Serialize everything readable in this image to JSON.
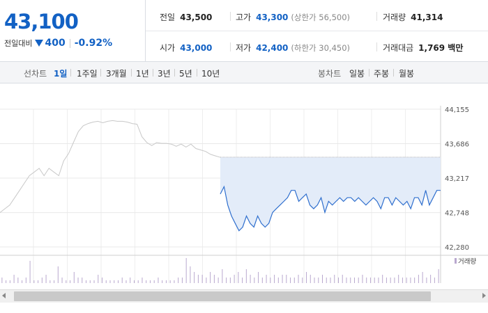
{
  "summary": {
    "price": "43,100",
    "change_label": "전일대비",
    "change_amount": "400",
    "change_pct": "-0.92%",
    "prev_close": {
      "label": "전일",
      "value": "43,500"
    },
    "high": {
      "label": "고가",
      "value": "43,300",
      "limit_label": "(상한가 56,500)"
    },
    "volume": {
      "label": "거래량",
      "value": "41,314"
    },
    "open": {
      "label": "시가",
      "value": "43,000"
    },
    "low": {
      "label": "저가",
      "value": "42,400",
      "limit_label": "(하한가 30,450)"
    },
    "trade_value": {
      "label": "거래대금",
      "value": "1,769 백만"
    }
  },
  "tabs": {
    "line_chart_label": "선차트",
    "periods": [
      "1일",
      "1주일",
      "3개월",
      "1년",
      "3년",
      "5년",
      "10년"
    ],
    "selected_period": "1일",
    "candle_label": "봉차트",
    "candle_periods": [
      "일봉",
      "주봉",
      "월봉"
    ]
  },
  "colors": {
    "price_blue": "#1261c4",
    "prev_line_gray": "#c8c8c8",
    "today_line": "#2f6fce",
    "area_fill": "#e3ecf9",
    "volume_bar": "#b9a8cf"
  },
  "chart_data": {
    "type": "line",
    "ylim": [
      42280,
      44155
    ],
    "y_ticks": [
      44155,
      43686,
      43217,
      42748,
      42280
    ],
    "y_tick_labels": [
      "44,155",
      "43,686",
      "43,217",
      "42,748",
      "42,280"
    ],
    "prev_close": 43500,
    "volume_legend": "거래량",
    "series": [
      {
        "values": [
          42748,
          42800,
          42850,
          42950,
          43050,
          43150,
          43250,
          43300,
          43350,
          43250,
          43350,
          43300,
          43250,
          43450,
          43550,
          43700,
          43850,
          43930,
          43960,
          43980,
          43990,
          43970,
          43990,
          44000,
          43990,
          43990,
          43980,
          43960,
          43950,
          43780,
          43700,
          43660,
          43700,
          43690,
          43690,
          43680,
          43650,
          43680,
          43640,
          43680,
          43620,
          43600,
          43580,
          43540,
          43520,
          43500
        ]
      },
      {
        "values": [
          43000,
          43100,
          42850,
          42700,
          42600,
          42500,
          42550,
          42700,
          42600,
          42550,
          42700,
          42600,
          42550,
          42600,
          42750,
          42800,
          42850,
          42900,
          42950,
          43050,
          43050,
          42900,
          42950,
          43000,
          42850,
          42800,
          42850,
          42950,
          42750,
          42900,
          42850,
          42900,
          42950,
          42900,
          42950,
          42950,
          42900,
          42950,
          42900,
          42850,
          42900,
          42950,
          42900,
          42800,
          42950,
          42950,
          42850,
          42950,
          42900,
          42850,
          42900,
          42800,
          42950,
          42950,
          42850,
          43050,
          42850,
          42950,
          43050,
          43050
        ]
      }
    ],
    "volume": [
      2,
      1,
      1,
      3,
      2,
      1,
      2,
      8,
      1,
      1,
      2,
      3,
      1,
      1,
      6,
      2,
      1,
      1,
      4,
      2,
      2,
      1,
      1,
      1,
      3,
      2,
      1,
      1,
      1,
      1,
      2,
      1,
      2,
      1,
      1,
      2,
      1,
      1,
      1,
      2,
      1,
      1,
      1,
      1,
      2,
      2,
      9,
      6,
      4,
      3,
      3,
      2,
      4,
      3,
      2,
      5,
      2,
      2,
      3,
      4,
      2,
      5,
      3,
      2,
      4,
      2,
      3,
      2,
      3,
      2,
      3,
      3,
      2,
      2,
      3,
      2,
      4,
      3,
      2,
      2,
      3,
      2,
      2,
      3,
      2,
      3,
      2,
      2,
      2,
      2,
      3,
      2,
      2,
      2,
      2,
      3,
      2,
      2,
      2,
      3,
      2,
      2,
      2,
      2,
      3,
      4,
      2,
      3,
      2,
      5
    ]
  }
}
